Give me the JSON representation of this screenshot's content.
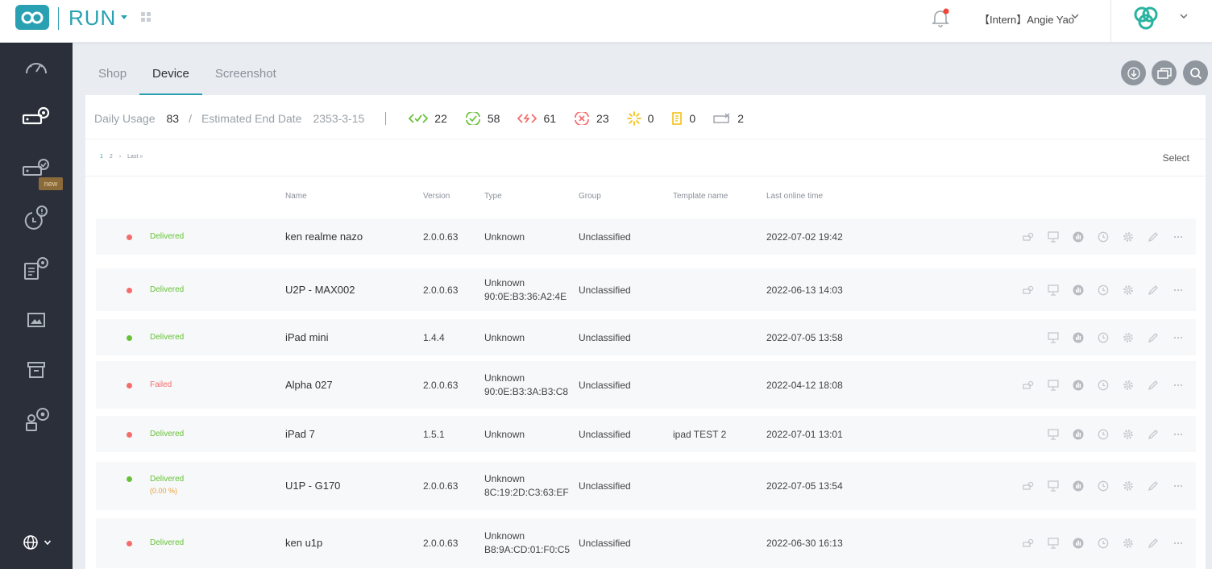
{
  "app": {
    "title": "RUN"
  },
  "header": {
    "user": "【Intern】Angie Yao"
  },
  "colors": {
    "accent": "#2aa1b3",
    "green": "#67c23a",
    "red": "#f56c6c",
    "orange": "#e6a23c",
    "sidebar": "#2a2f3a"
  },
  "sidebar": {
    "items": [
      {
        "icon": "dashboard-icon"
      },
      {
        "icon": "device-settings-icon"
      },
      {
        "icon": "device-check-icon",
        "badge": "new"
      },
      {
        "icon": "alert-clock-icon"
      },
      {
        "icon": "doc-settings-icon"
      },
      {
        "icon": "image-icon"
      },
      {
        "icon": "archive-icon"
      },
      {
        "icon": "user-settings-icon"
      }
    ]
  },
  "tabs": [
    {
      "label": "Shop"
    },
    {
      "label": "Device"
    },
    {
      "label": "Screenshot"
    }
  ],
  "stats": {
    "daily_usage_label": "Daily Usage",
    "daily_usage": "83",
    "separator": "/",
    "end_date_label": "Estimated End Date",
    "end_date": "2353-3-15",
    "counts": [
      "22",
      "58",
      "61",
      "23",
      "0",
      "0",
      "2"
    ]
  },
  "pager": {
    "p1": "1",
    "p2": "2",
    "next": "›",
    "last": "Last »"
  },
  "select_label": "Select",
  "columns": {
    "name": "Name",
    "version": "Version",
    "type": "Type",
    "group": "Group",
    "template": "Template name",
    "last_online": "Last online time"
  },
  "rows": [
    {
      "dot": "red",
      "status": "Delivered",
      "status_color": "green",
      "sub": "",
      "name": "ken realme nazo",
      "version": "2.0.0.63",
      "type": "Unknown",
      "mac": "",
      "group": "Unclassified",
      "template": "",
      "last_online": "2022-07-02 19:42"
    },
    {
      "dot": "red",
      "status": "Delivered",
      "status_color": "green",
      "sub": "",
      "name": "U2P - MAX002",
      "version": "2.0.0.63",
      "type": "Unknown",
      "mac": "90:0E:B3:36:A2:4E",
      "group": "Unclassified",
      "template": "",
      "last_online": "2022-06-13 14:03"
    },
    {
      "dot": "green",
      "status": "Delivered",
      "status_color": "green",
      "sub": "",
      "name": "iPad mini",
      "version": "1.4.4",
      "type": "Unknown",
      "mac": "",
      "group": "Unclassified",
      "template": "",
      "last_online": "2022-07-05 13:58"
    },
    {
      "dot": "red",
      "status": "Failed",
      "status_color": "red",
      "sub": "",
      "name": "Alpha 027",
      "version": "2.0.0.63",
      "type": "Unknown",
      "mac": "90:0E:B3:3A:B3:C8",
      "group": "Unclassified",
      "template": "",
      "last_online": "2022-04-12 18:08"
    },
    {
      "dot": "red",
      "status": "Delivered",
      "status_color": "green",
      "sub": "",
      "name": "iPad 7",
      "version": "1.5.1",
      "type": "Unknown",
      "mac": "",
      "group": "Unclassified",
      "template": "ipad TEST 2",
      "last_online": "2022-07-01 13:01"
    },
    {
      "dot": "green",
      "status": "Delivered",
      "status_color": "green",
      "sub": "(0.00 %)",
      "name": "U1P - G170",
      "version": "2.0.0.63",
      "type": "Unknown",
      "mac": "8C:19:2D:C3:63:EF",
      "group": "Unclassified",
      "template": "",
      "last_online": "2022-07-05 13:54"
    },
    {
      "dot": "red",
      "status": "Delivered",
      "status_color": "green",
      "sub": "",
      "name": "ken u1p",
      "version": "2.0.0.63",
      "type": "Unknown",
      "mac": "B8:9A:CD:01:F0:C5",
      "group": "Unclassified",
      "template": "",
      "last_online": "2022-06-30 16:13"
    }
  ]
}
